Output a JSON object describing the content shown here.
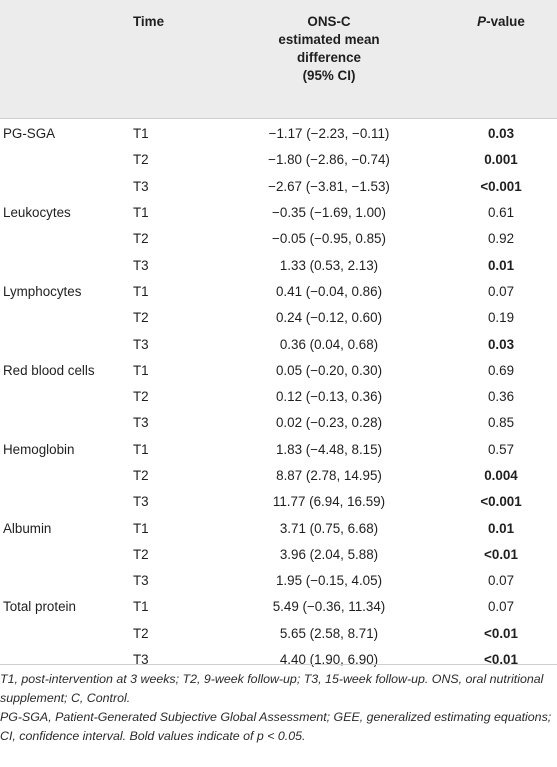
{
  "table": {
    "headers": {
      "variable": "",
      "time": "Time",
      "diff_lines": [
        "ONS-C",
        "estimated mean",
        "difference",
        "(95% CI)"
      ],
      "p_italic": "P",
      "p_rest": "-value"
    },
    "rows": [
      {
        "variable": "PG-SGA",
        "time": "T1",
        "diff": "−1.17 (−2.23, −0.11)",
        "p": "0.03",
        "bold": true
      },
      {
        "variable": "",
        "time": "T2",
        "diff": "−1.80 (−2.86, −0.74)",
        "p": "0.001",
        "bold": true
      },
      {
        "variable": "",
        "time": "T3",
        "diff": "−2.67 (−3.81, −1.53)",
        "p": "<0.001",
        "bold": true
      },
      {
        "variable": "Leukocytes",
        "time": "T1",
        "diff": "−0.35 (−1.69, 1.00)",
        "p": "0.61",
        "bold": false
      },
      {
        "variable": "",
        "time": "T2",
        "diff": "−0.05 (−0.95, 0.85)",
        "p": "0.92",
        "bold": false
      },
      {
        "variable": "",
        "time": "T3",
        "diff": "1.33 (0.53, 2.13)",
        "p": "0.01",
        "bold": true
      },
      {
        "variable": "Lymphocytes",
        "time": "T1",
        "diff": "0.41 (−0.04, 0.86)",
        "p": "0.07",
        "bold": false
      },
      {
        "variable": "",
        "time": "T2",
        "diff": "0.24 (−0.12, 0.60)",
        "p": "0.19",
        "bold": false
      },
      {
        "variable": "",
        "time": "T3",
        "diff": "0.36 (0.04, 0.68)",
        "p": "0.03",
        "bold": true
      },
      {
        "variable": "Red blood cells",
        "time": "T1",
        "diff": "0.05 (−0.20, 0.30)",
        "p": "0.69",
        "bold": false
      },
      {
        "variable": "",
        "time": "T2",
        "diff": "0.12 (−0.13, 0.36)",
        "p": "0.36",
        "bold": false
      },
      {
        "variable": "",
        "time": "T3",
        "diff": "0.02 (−0.23, 0.28)",
        "p": "0.85",
        "bold": false
      },
      {
        "variable": "Hemoglobin",
        "time": "T1",
        "diff": "1.83 (−4.48, 8.15)",
        "p": "0.57",
        "bold": false
      },
      {
        "variable": "",
        "time": "T2",
        "diff": "8.87 (2.78, 14.95)",
        "p": "0.004",
        "bold": true
      },
      {
        "variable": "",
        "time": "T3",
        "diff": "11.77 (6.94, 16.59)",
        "p": "<0.001",
        "bold": true
      },
      {
        "variable": "Albumin",
        "time": "T1",
        "diff": "3.71 (0.75, 6.68)",
        "p": "0.01",
        "bold": true
      },
      {
        "variable": "",
        "time": "T2",
        "diff": "3.96 (2.04, 5.88)",
        "p": "<0.01",
        "bold": true
      },
      {
        "variable": "",
        "time": "T3",
        "diff": "1.95 (−0.15, 4.05)",
        "p": "0.07",
        "bold": false
      },
      {
        "variable": "Total protein",
        "time": "T1",
        "diff": "5.49 (−0.36, 11.34)",
        "p": "0.07",
        "bold": false
      },
      {
        "variable": "",
        "time": "T2",
        "diff": "5.65 (2.58, 8.71)",
        "p": "<0.01",
        "bold": true
      },
      {
        "variable": "",
        "time": "T3",
        "diff": "4.40 (1.90, 6.90)",
        "p": "<0.01",
        "bold": true
      }
    ]
  },
  "footnotes": {
    "line1": "T1, post-intervention at 3 weeks; T2, 9-week follow-up; T3, 15-week follow-up. ONS, oral nutritional supplement; C, Control.",
    "line2": "PG-SGA, Patient-Generated Subjective Global Assessment; GEE, generalized estimating equations; CI, confidence interval. Bold values indicate of p < 0.05."
  }
}
